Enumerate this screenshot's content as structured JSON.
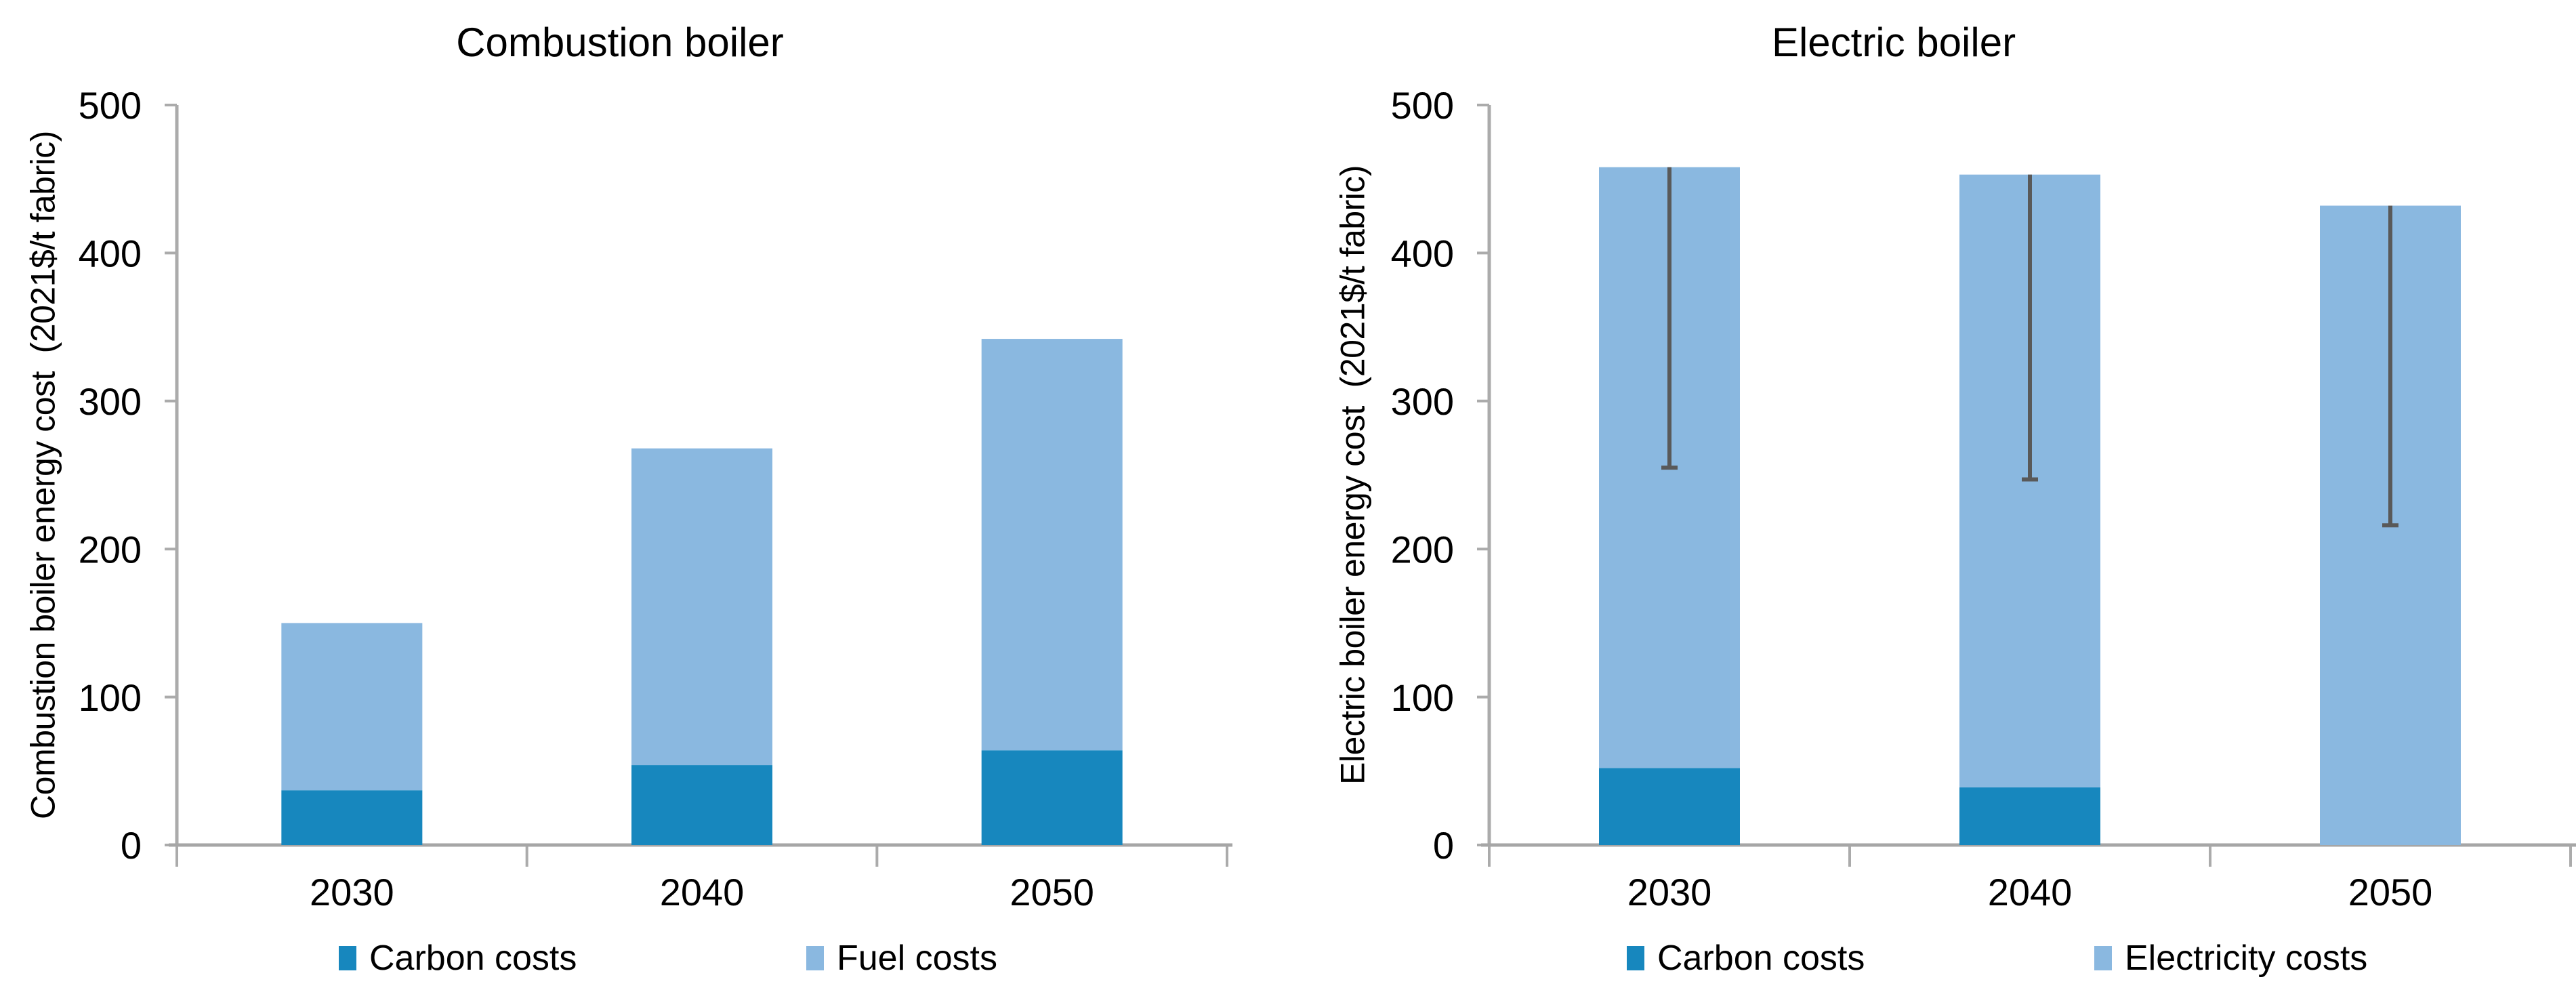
{
  "page": {
    "background": "#ffffff"
  },
  "colors": {
    "carbon_costs": "#1787BE",
    "fuel_costs": "#8AB8E0",
    "electricity_costs": "#8AB8E0",
    "error_bar": "#595959",
    "axis_line": "#A6A6A6",
    "tick_mark": "#ABABAB",
    "text": "#000000"
  },
  "chart_data": [
    {
      "type": "bar",
      "stacked": true,
      "title": "Combustion boiler",
      "ylabel": "Combustion boiler energy cost  (2021$/t fabric)",
      "xlabel": "",
      "categories": [
        "2030",
        "2040",
        "2050"
      ],
      "series": [
        {
          "name": "Carbon costs",
          "color": "#1787BE",
          "values": [
            37,
            54,
            64
          ]
        },
        {
          "name": "Fuel costs",
          "color": "#8AB8E0",
          "values": [
            113,
            214,
            278
          ]
        }
      ],
      "totals": [
        150,
        268,
        342
      ],
      "ylim": [
        0,
        500
      ],
      "yticks": [
        500,
        400,
        300,
        200,
        100,
        0
      ],
      "ytick_labels": [
        "500",
        "400",
        "300",
        "200",
        "100",
        "0"
      ],
      "grid": false,
      "legend_position": "bottom"
    },
    {
      "type": "bar",
      "stacked": true,
      "title": "Electric boiler",
      "ylabel": "Electric boiler energy cost  (2021$/t fabric)",
      "xlabel": "",
      "categories": [
        "2030",
        "2040",
        "2050"
      ],
      "series": [
        {
          "name": "Carbon costs",
          "color": "#1787BE",
          "values": [
            52,
            39,
            0
          ]
        },
        {
          "name": "Electricity costs",
          "color": "#8AB8E0",
          "values": [
            406,
            414,
            432
          ]
        }
      ],
      "totals": [
        458,
        453,
        432
      ],
      "error_bars": {
        "high": [
          458,
          453,
          432
        ],
        "low": [
          255,
          247,
          216
        ],
        "color": "#595959"
      },
      "ylim": [
        0,
        500
      ],
      "yticks": [
        500,
        400,
        300,
        200,
        100,
        0
      ],
      "ytick_labels": [
        "500",
        "400",
        "300",
        "200",
        "100",
        "0"
      ],
      "grid": false,
      "legend_position": "bottom"
    }
  ]
}
